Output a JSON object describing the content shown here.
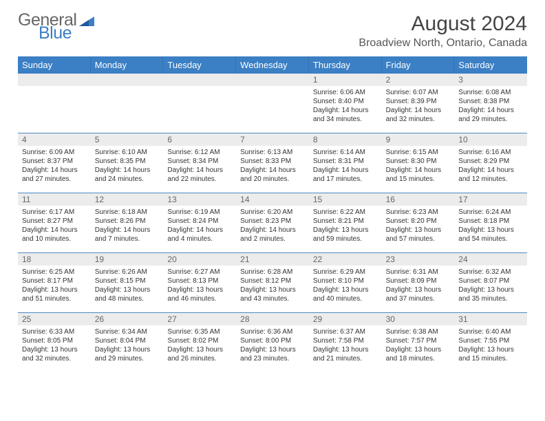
{
  "logo": {
    "line1": "General",
    "line2": "Blue"
  },
  "title": "August 2024",
  "location": "Broadview North, Ontario, Canada",
  "colors": {
    "header_bg": "#3b7fc4",
    "header_text": "#ffffff",
    "num_bg": "#ececec",
    "num_text": "#666666",
    "body_text": "#333333",
    "rule": "#4d88c4"
  },
  "day_names": [
    "Sunday",
    "Monday",
    "Tuesday",
    "Wednesday",
    "Thursday",
    "Friday",
    "Saturday"
  ],
  "weeks": [
    [
      {
        "n": "",
        "sr": "",
        "ss": "",
        "dl": ""
      },
      {
        "n": "",
        "sr": "",
        "ss": "",
        "dl": ""
      },
      {
        "n": "",
        "sr": "",
        "ss": "",
        "dl": ""
      },
      {
        "n": "",
        "sr": "",
        "ss": "",
        "dl": ""
      },
      {
        "n": "1",
        "sr": "Sunrise: 6:06 AM",
        "ss": "Sunset: 8:40 PM",
        "dl": "Daylight: 14 hours and 34 minutes."
      },
      {
        "n": "2",
        "sr": "Sunrise: 6:07 AM",
        "ss": "Sunset: 8:39 PM",
        "dl": "Daylight: 14 hours and 32 minutes."
      },
      {
        "n": "3",
        "sr": "Sunrise: 6:08 AM",
        "ss": "Sunset: 8:38 PM",
        "dl": "Daylight: 14 hours and 29 minutes."
      }
    ],
    [
      {
        "n": "4",
        "sr": "Sunrise: 6:09 AM",
        "ss": "Sunset: 8:37 PM",
        "dl": "Daylight: 14 hours and 27 minutes."
      },
      {
        "n": "5",
        "sr": "Sunrise: 6:10 AM",
        "ss": "Sunset: 8:35 PM",
        "dl": "Daylight: 14 hours and 24 minutes."
      },
      {
        "n": "6",
        "sr": "Sunrise: 6:12 AM",
        "ss": "Sunset: 8:34 PM",
        "dl": "Daylight: 14 hours and 22 minutes."
      },
      {
        "n": "7",
        "sr": "Sunrise: 6:13 AM",
        "ss": "Sunset: 8:33 PM",
        "dl": "Daylight: 14 hours and 20 minutes."
      },
      {
        "n": "8",
        "sr": "Sunrise: 6:14 AM",
        "ss": "Sunset: 8:31 PM",
        "dl": "Daylight: 14 hours and 17 minutes."
      },
      {
        "n": "9",
        "sr": "Sunrise: 6:15 AM",
        "ss": "Sunset: 8:30 PM",
        "dl": "Daylight: 14 hours and 15 minutes."
      },
      {
        "n": "10",
        "sr": "Sunrise: 6:16 AM",
        "ss": "Sunset: 8:29 PM",
        "dl": "Daylight: 14 hours and 12 minutes."
      }
    ],
    [
      {
        "n": "11",
        "sr": "Sunrise: 6:17 AM",
        "ss": "Sunset: 8:27 PM",
        "dl": "Daylight: 14 hours and 10 minutes."
      },
      {
        "n": "12",
        "sr": "Sunrise: 6:18 AM",
        "ss": "Sunset: 8:26 PM",
        "dl": "Daylight: 14 hours and 7 minutes."
      },
      {
        "n": "13",
        "sr": "Sunrise: 6:19 AM",
        "ss": "Sunset: 8:24 PM",
        "dl": "Daylight: 14 hours and 4 minutes."
      },
      {
        "n": "14",
        "sr": "Sunrise: 6:20 AM",
        "ss": "Sunset: 8:23 PM",
        "dl": "Daylight: 14 hours and 2 minutes."
      },
      {
        "n": "15",
        "sr": "Sunrise: 6:22 AM",
        "ss": "Sunset: 8:21 PM",
        "dl": "Daylight: 13 hours and 59 minutes."
      },
      {
        "n": "16",
        "sr": "Sunrise: 6:23 AM",
        "ss": "Sunset: 8:20 PM",
        "dl": "Daylight: 13 hours and 57 minutes."
      },
      {
        "n": "17",
        "sr": "Sunrise: 6:24 AM",
        "ss": "Sunset: 8:18 PM",
        "dl": "Daylight: 13 hours and 54 minutes."
      }
    ],
    [
      {
        "n": "18",
        "sr": "Sunrise: 6:25 AM",
        "ss": "Sunset: 8:17 PM",
        "dl": "Daylight: 13 hours and 51 minutes."
      },
      {
        "n": "19",
        "sr": "Sunrise: 6:26 AM",
        "ss": "Sunset: 8:15 PM",
        "dl": "Daylight: 13 hours and 48 minutes."
      },
      {
        "n": "20",
        "sr": "Sunrise: 6:27 AM",
        "ss": "Sunset: 8:13 PM",
        "dl": "Daylight: 13 hours and 46 minutes."
      },
      {
        "n": "21",
        "sr": "Sunrise: 6:28 AM",
        "ss": "Sunset: 8:12 PM",
        "dl": "Daylight: 13 hours and 43 minutes."
      },
      {
        "n": "22",
        "sr": "Sunrise: 6:29 AM",
        "ss": "Sunset: 8:10 PM",
        "dl": "Daylight: 13 hours and 40 minutes."
      },
      {
        "n": "23",
        "sr": "Sunrise: 6:31 AM",
        "ss": "Sunset: 8:09 PM",
        "dl": "Daylight: 13 hours and 37 minutes."
      },
      {
        "n": "24",
        "sr": "Sunrise: 6:32 AM",
        "ss": "Sunset: 8:07 PM",
        "dl": "Daylight: 13 hours and 35 minutes."
      }
    ],
    [
      {
        "n": "25",
        "sr": "Sunrise: 6:33 AM",
        "ss": "Sunset: 8:05 PM",
        "dl": "Daylight: 13 hours and 32 minutes."
      },
      {
        "n": "26",
        "sr": "Sunrise: 6:34 AM",
        "ss": "Sunset: 8:04 PM",
        "dl": "Daylight: 13 hours and 29 minutes."
      },
      {
        "n": "27",
        "sr": "Sunrise: 6:35 AM",
        "ss": "Sunset: 8:02 PM",
        "dl": "Daylight: 13 hours and 26 minutes."
      },
      {
        "n": "28",
        "sr": "Sunrise: 6:36 AM",
        "ss": "Sunset: 8:00 PM",
        "dl": "Daylight: 13 hours and 23 minutes."
      },
      {
        "n": "29",
        "sr": "Sunrise: 6:37 AM",
        "ss": "Sunset: 7:58 PM",
        "dl": "Daylight: 13 hours and 21 minutes."
      },
      {
        "n": "30",
        "sr": "Sunrise: 6:38 AM",
        "ss": "Sunset: 7:57 PM",
        "dl": "Daylight: 13 hours and 18 minutes."
      },
      {
        "n": "31",
        "sr": "Sunrise: 6:40 AM",
        "ss": "Sunset: 7:55 PM",
        "dl": "Daylight: 13 hours and 15 minutes."
      }
    ]
  ]
}
